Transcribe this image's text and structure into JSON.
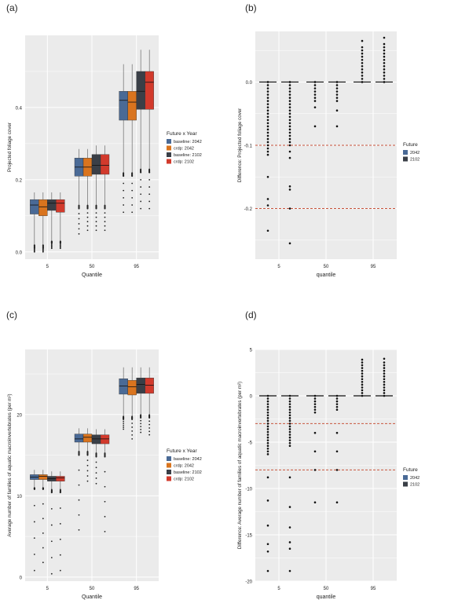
{
  "colors": {
    "baseline_2042": "#4A6A96",
    "crdp_2042": "#D9741E",
    "baseline_2102": "#3A3F47",
    "crdp_2102": "#D23A2C",
    "panel_bg": "#EBEBEB",
    "grid": "#FFFFFF",
    "ref_line": "#C8553D"
  },
  "chart_data": [
    {
      "panel": "(a)",
      "type": "box",
      "xlabel": "Quantile",
      "ylabel": "Projected foliage cover",
      "categories": [
        "5",
        "50",
        "95"
      ],
      "ylim": [
        -0.02,
        0.6
      ],
      "yticks": [
        0.0,
        0.2,
        0.4
      ],
      "ytick_labels": [
        "0.0",
        "0.2",
        "0.4"
      ],
      "legend_title": "Future x Year",
      "series": [
        {
          "name": "baseline: 2042",
          "color_key": "baseline_2042",
          "boxes": [
            {
              "q1": 0.105,
              "median": 0.13,
              "q3": 0.145,
              "wlo": 0.02,
              "whi": 0.165,
              "out_lo": 0.0,
              "out_hi": 0.01
            },
            {
              "q1": 0.21,
              "median": 0.235,
              "q3": 0.26,
              "wlo": 0.13,
              "whi": 0.285,
              "out_lo": 0.05,
              "out_hi": 0.12
            },
            {
              "q1": 0.365,
              "median": 0.42,
              "q3": 0.445,
              "wlo": 0.22,
              "whi": 0.52,
              "out_lo": 0.11,
              "out_hi": 0.21
            }
          ]
        },
        {
          "name": "crdp: 2042",
          "color_key": "crdp_2042",
          "boxes": [
            {
              "q1": 0.1,
              "median": 0.125,
              "q3": 0.145,
              "wlo": 0.02,
              "whi": 0.165,
              "out_lo": 0.0,
              "out_hi": 0.01
            },
            {
              "q1": 0.21,
              "median": 0.235,
              "q3": 0.26,
              "wlo": 0.13,
              "whi": 0.285,
              "out_lo": 0.06,
              "out_hi": 0.12
            },
            {
              "q1": 0.365,
              "median": 0.415,
              "q3": 0.445,
              "wlo": 0.22,
              "whi": 0.52,
              "out_lo": 0.11,
              "out_hi": 0.21
            }
          ]
        },
        {
          "name": "baseline: 2102",
          "color_key": "baseline_2102",
          "boxes": [
            {
              "q1": 0.115,
              "median": 0.135,
              "q3": 0.145,
              "wlo": 0.03,
              "whi": 0.165,
              "out_lo": 0.01,
              "out_hi": 0.025
            },
            {
              "q1": 0.215,
              "median": 0.24,
              "q3": 0.27,
              "wlo": 0.13,
              "whi": 0.295,
              "out_lo": 0.06,
              "out_hi": 0.12
            },
            {
              "q1": 0.395,
              "median": 0.445,
              "q3": 0.5,
              "wlo": 0.23,
              "whi": 0.56,
              "out_lo": 0.12,
              "out_hi": 0.22
            }
          ]
        },
        {
          "name": "crdp: 2102",
          "color_key": "crdp_2102",
          "boxes": [
            {
              "q1": 0.11,
              "median": 0.135,
              "q3": 0.145,
              "wlo": 0.03,
              "whi": 0.165,
              "out_lo": 0.01,
              "out_hi": 0.025
            },
            {
              "q1": 0.215,
              "median": 0.24,
              "q3": 0.27,
              "wlo": 0.13,
              "whi": 0.295,
              "out_lo": 0.06,
              "out_hi": 0.12
            },
            {
              "q1": 0.395,
              "median": 0.47,
              "q3": 0.5,
              "wlo": 0.23,
              "whi": 0.56,
              "out_lo": 0.12,
              "out_hi": 0.22
            }
          ]
        }
      ]
    },
    {
      "panel": "(b)",
      "type": "box",
      "xlabel": "quantile",
      "ylabel": "Difference: Projected foliage cover",
      "categories": [
        "5",
        "50",
        "95"
      ],
      "ylim": [
        -0.28,
        0.08
      ],
      "yticks": [
        -0.2,
        -0.1,
        0.0
      ],
      "ytick_labels": [
        "-0.2",
        "-0.1",
        "0.0"
      ],
      "hlines": [
        -0.1,
        -0.2
      ],
      "legend_title": "Future",
      "series": [
        {
          "name": "2042",
          "color_key": "baseline_2042",
          "boxes": [
            {
              "median": 0.0,
              "pts": [
                0,
                -0.005,
                -0.01,
                -0.015,
                -0.02,
                -0.025,
                -0.03,
                -0.035,
                -0.04,
                -0.045,
                -0.05,
                -0.055,
                -0.06,
                -0.065,
                -0.07,
                -0.075,
                -0.08,
                -0.085,
                -0.09,
                -0.095,
                -0.1,
                -0.105,
                -0.11,
                -0.115,
                -0.15,
                -0.185,
                -0.195,
                -0.235
              ]
            },
            {
              "median": 0.0,
              "pts": [
                0,
                -0.005,
                -0.01,
                -0.015,
                -0.02,
                -0.025,
                -0.03,
                -0.04,
                -0.07
              ]
            },
            {
              "median": 0.0,
              "pts": [
                0,
                0.005,
                0.01,
                0.015,
                0.02,
                0.025,
                0.03,
                0.035,
                0.04,
                0.045,
                0.05,
                0.055,
                0.065
              ]
            }
          ]
        },
        {
          "name": "2102",
          "color_key": "baseline_2102",
          "boxes": [
            {
              "median": 0.0,
              "pts": [
                0,
                -0.005,
                -0.01,
                -0.015,
                -0.02,
                -0.025,
                -0.03,
                -0.035,
                -0.04,
                -0.045,
                -0.05,
                -0.055,
                -0.06,
                -0.065,
                -0.07,
                -0.075,
                -0.08,
                -0.085,
                -0.09,
                -0.095,
                -0.1,
                -0.11,
                -0.12,
                -0.165,
                -0.17,
                -0.2,
                -0.255
              ]
            },
            {
              "median": 0.0,
              "pts": [
                0,
                -0.005,
                -0.01,
                -0.015,
                -0.02,
                -0.025,
                -0.03,
                -0.045,
                -0.07
              ]
            },
            {
              "median": 0.0,
              "pts": [
                0,
                0.005,
                0.01,
                0.015,
                0.02,
                0.025,
                0.03,
                0.035,
                0.04,
                0.045,
                0.05,
                0.055,
                0.06,
                0.07
              ]
            }
          ]
        }
      ]
    },
    {
      "panel": "(c)",
      "type": "box",
      "xlabel": "Quantile",
      "ylabel": "Average number of families of aquatic macroinvertebrates (per m²)",
      "categories": [
        "5",
        "50",
        "95"
      ],
      "ylim": [
        -0.5,
        28
      ],
      "yticks": [
        0,
        10,
        20
      ],
      "ytick_labels": [
        "0",
        "10",
        "20"
      ],
      "legend_title": "Future x Year",
      "series": [
        {
          "name": "baseline: 2042",
          "color_key": "baseline_2042",
          "boxes": [
            {
              "q1": 12.0,
              "median": 12.3,
              "q3": 12.6,
              "wlo": 11.0,
              "whi": 13.2,
              "out_lo": 0.8,
              "out_hi": 10.8
            },
            {
              "q1": 16.6,
              "median": 17.0,
              "q3": 17.6,
              "wlo": 15.5,
              "whi": 18.3,
              "out_lo": 5.8,
              "out_hi": 15.0
            },
            {
              "q1": 22.5,
              "median": 23.5,
              "q3": 24.4,
              "wlo": 19.8,
              "whi": 25.8,
              "out_lo": 18.2,
              "out_hi": 19.4
            }
          ]
        },
        {
          "name": "crdp: 2042",
          "color_key": "crdp_2042",
          "boxes": [
            {
              "q1": 12.0,
              "median": 12.4,
              "q3": 12.6,
              "wlo": 11.0,
              "whi": 13.2,
              "out_lo": 1.8,
              "out_hi": 10.8
            },
            {
              "q1": 16.6,
              "median": 17.2,
              "q3": 17.6,
              "wlo": 15.5,
              "whi": 18.3,
              "out_lo": 11.8,
              "out_hi": 15.0
            },
            {
              "q1": 22.4,
              "median": 23.4,
              "q3": 24.2,
              "wlo": 19.8,
              "whi": 25.8,
              "out_lo": 17.0,
              "out_hi": 19.4
            }
          ]
        },
        {
          "name": "baseline: 2102",
          "color_key": "baseline_2102",
          "boxes": [
            {
              "q1": 11.8,
              "median": 12.1,
              "q3": 12.4,
              "wlo": 10.8,
              "whi": 13.0,
              "out_lo": 0.4,
              "out_hi": 10.4
            },
            {
              "q1": 16.4,
              "median": 17.0,
              "q3": 17.5,
              "wlo": 15.3,
              "whi": 18.2,
              "out_lo": 11.5,
              "out_hi": 14.8
            },
            {
              "q1": 22.6,
              "median": 23.7,
              "q3": 24.5,
              "wlo": 20.0,
              "whi": 25.8,
              "out_lo": 17.8,
              "out_hi": 19.6
            }
          ]
        },
        {
          "name": "crdp: 2102",
          "color_key": "crdp_2102",
          "boxes": [
            {
              "q1": 11.8,
              "median": 12.2,
              "q3": 12.4,
              "wlo": 10.8,
              "whi": 13.0,
              "out_lo": 0.8,
              "out_hi": 10.4
            },
            {
              "q1": 16.4,
              "median": 17.0,
              "q3": 17.5,
              "wlo": 15.3,
              "whi": 18.2,
              "out_lo": 5.6,
              "out_hi": 14.8
            },
            {
              "q1": 22.6,
              "median": 23.6,
              "q3": 24.5,
              "wlo": 20.0,
              "whi": 25.8,
              "out_lo": 17.5,
              "out_hi": 19.6
            }
          ]
        }
      ]
    },
    {
      "panel": "(d)",
      "type": "box",
      "xlabel": "quantile",
      "ylabel": "Difference: Average number of families of aquatic macroinvertebrates (per m²)",
      "categories": [
        "5",
        "50",
        "95"
      ],
      "ylim": [
        -20,
        5
      ],
      "yticks": [
        -20,
        -15,
        -10,
        -5,
        0,
        5
      ],
      "ytick_labels": [
        "-20",
        "-15",
        "-10",
        "-5",
        "0",
        "5"
      ],
      "hlines": [
        -3,
        -8
      ],
      "legend_title": "Future",
      "series": [
        {
          "name": "2042",
          "color_key": "baseline_2042",
          "boxes": [
            {
              "median": 0.0,
              "pts": [
                0,
                -0.3,
                -0.6,
                -0.9,
                -1.2,
                -1.5,
                -1.8,
                -2.1,
                -2.4,
                -2.7,
                -3.0,
                -3.3,
                -3.6,
                -3.9,
                -4.2,
                -4.5,
                -4.8,
                -5.1,
                -5.4,
                -5.7,
                -6.0,
                -6.3,
                -8.8,
                -11.3,
                -14.0,
                -16.0,
                -16.8,
                -18.9
              ]
            },
            {
              "median": 0.0,
              "pts": [
                0,
                -0.3,
                -0.6,
                -0.9,
                -1.2,
                -1.5,
                -1.8,
                -4.0,
                -6.0,
                -8.0,
                -11.5
              ]
            },
            {
              "median": 0.0,
              "pts": [
                0,
                0.3,
                0.6,
                0.9,
                1.2,
                1.5,
                1.8,
                2.1,
                2.4,
                2.7,
                3.0,
                3.3,
                3.6,
                3.9
              ]
            }
          ]
        },
        {
          "name": "2102",
          "color_key": "baseline_2102",
          "boxes": [
            {
              "median": 0.0,
              "pts": [
                0,
                -0.3,
                -0.6,
                -0.9,
                -1.2,
                -1.5,
                -1.8,
                -2.1,
                -2.4,
                -2.7,
                -3.0,
                -3.3,
                -3.6,
                -3.9,
                -4.2,
                -4.5,
                -4.8,
                -5.1,
                -5.4,
                -8.8,
                -12.0,
                -14.2,
                -15.8,
                -16.5,
                -18.9
              ]
            },
            {
              "median": 0.0,
              "pts": [
                0,
                -0.3,
                -0.6,
                -0.9,
                -1.2,
                -1.5,
                -4.0,
                -6.0,
                -8.0,
                -11.5
              ]
            },
            {
              "median": 0.0,
              "pts": [
                0,
                0.3,
                0.6,
                0.9,
                1.2,
                1.5,
                1.8,
                2.1,
                2.4,
                2.7,
                3.0,
                3.3,
                3.6,
                4.0
              ]
            }
          ]
        }
      ]
    }
  ]
}
